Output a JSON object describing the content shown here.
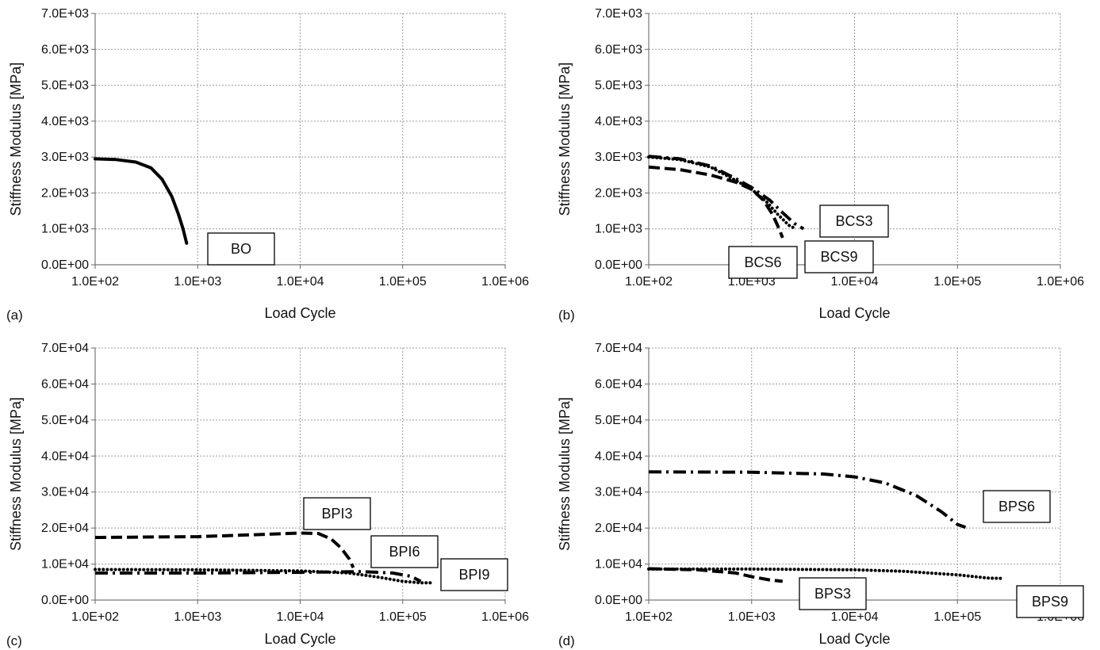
{
  "chart_data": [
    {
      "panel_label": "(a)",
      "type": "line",
      "xlabel": "Load Cycle",
      "ylabel": "Stiffness Modulus [MPa]",
      "x_scale": "log",
      "xlim": [
        100,
        1000000
      ],
      "ylim": [
        0,
        7000
      ],
      "x_tick_labels": [
        "1.0E+02",
        "1.0E+03",
        "1.0E+04",
        "1.0E+05",
        "1.0E+06"
      ],
      "y_tick_labels": [
        "0.0E+00",
        "1.0E+03",
        "2.0E+03",
        "3.0E+03",
        "4.0E+03",
        "5.0E+03",
        "6.0E+03",
        "7.0E+03"
      ],
      "grid": true,
      "series": [
        {
          "name": "BO",
          "style": "solid",
          "points": [
            [
              100,
              2950
            ],
            [
              160,
              2930
            ],
            [
              250,
              2860
            ],
            [
              350,
              2700
            ],
            [
              450,
              2380
            ],
            [
              560,
              1900
            ],
            [
              650,
              1400
            ],
            [
              720,
              1000
            ],
            [
              780,
              600
            ]
          ]
        }
      ],
      "annotations": [
        "BO"
      ]
    },
    {
      "panel_label": "(b)",
      "type": "line",
      "xlabel": "Load Cycle",
      "ylabel": "Stiffness Modulus [MPa]",
      "x_scale": "log",
      "xlim": [
        100,
        1000000
      ],
      "ylim": [
        0,
        7000
      ],
      "x_tick_labels": [
        "1.0E+02",
        "1.0E+03",
        "1.0E+04",
        "1.0E+05",
        "1.0E+06"
      ],
      "y_tick_labels": [
        "0.0E+00",
        "1.0E+03",
        "2.0E+03",
        "3.0E+03",
        "4.0E+03",
        "5.0E+03",
        "6.0E+03",
        "7.0E+03"
      ],
      "grid": true,
      "series": [
        {
          "name": "BCS3",
          "style": "dashdot",
          "points": [
            [
              100,
              3020
            ],
            [
              200,
              2950
            ],
            [
              400,
              2750
            ],
            [
              700,
              2400
            ],
            [
              1000,
              2150
            ],
            [
              1500,
              1800
            ],
            [
              2000,
              1450
            ],
            [
              2600,
              1150
            ],
            [
              3200,
              1000
            ]
          ]
        },
        {
          "name": "BCS6",
          "style": "dashed",
          "points": [
            [
              100,
              2720
            ],
            [
              200,
              2650
            ],
            [
              400,
              2500
            ],
            [
              700,
              2300
            ],
            [
              1000,
              2100
            ],
            [
              1300,
              1800
            ],
            [
              1600,
              1400
            ],
            [
              1850,
              1000
            ],
            [
              2000,
              750
            ]
          ]
        },
        {
          "name": "BCS9",
          "style": "dotted",
          "points": [
            [
              100,
              3000
            ],
            [
              200,
              2930
            ],
            [
              400,
              2720
            ],
            [
              700,
              2350
            ],
            [
              1000,
              2100
            ],
            [
              1400,
              1750
            ],
            [
              1800,
              1400
            ],
            [
              2300,
              1100
            ],
            [
              2700,
              1000
            ]
          ]
        }
      ],
      "annotations": [
        "BCS3",
        "BCS6",
        "BCS9"
      ]
    },
    {
      "panel_label": "(c)",
      "type": "line",
      "xlabel": "Load Cycle",
      "ylabel": "Stiffness Modulus [MPa]",
      "x_scale": "log",
      "xlim": [
        100,
        1000000
      ],
      "ylim": [
        0,
        70000
      ],
      "x_tick_labels": [
        "1.0E+02",
        "1.0E+03",
        "1.0E+04",
        "1.0E+05",
        "1.0E+06"
      ],
      "y_tick_labels": [
        "0.0E+00",
        "1.0E+04",
        "2.0E+04",
        "3.0E+04",
        "4.0E+04",
        "5.0E+04",
        "6.0E+04",
        "7.0E+04"
      ],
      "grid": true,
      "series": [
        {
          "name": "BPI3",
          "style": "dashed",
          "points": [
            [
              100,
              17400
            ],
            [
              1000,
              17600
            ],
            [
              5000,
              18300
            ],
            [
              10000,
              18600
            ],
            [
              15000,
              18500
            ],
            [
              20000,
              17000
            ],
            [
              25000,
              14500
            ],
            [
              30000,
              11500
            ],
            [
              33000,
              9000
            ]
          ]
        },
        {
          "name": "BPI6",
          "style": "dashdot",
          "points": [
            [
              100,
              7500
            ],
            [
              1000,
              7500
            ],
            [
              10000,
              7700
            ],
            [
              40000,
              7900
            ],
            [
              80000,
              7500
            ],
            [
              120000,
              6600
            ],
            [
              150000,
              5200
            ]
          ]
        },
        {
          "name": "BPI9",
          "style": "dotted",
          "points": [
            [
              100,
              8500
            ],
            [
              1000,
              8400
            ],
            [
              10000,
              8100
            ],
            [
              30000,
              7500
            ],
            [
              60000,
              6300
            ],
            [
              100000,
              5200
            ],
            [
              150000,
              4800
            ],
            [
              190000,
              4800
            ]
          ]
        }
      ],
      "annotations": [
        "BPI3",
        "BPI6",
        "BPI9"
      ]
    },
    {
      "panel_label": "(d)",
      "type": "line",
      "xlabel": "Load Cycle",
      "ylabel": "Stiffness Modulus [MPa]",
      "x_scale": "log",
      "xlim": [
        100,
        1000000
      ],
      "ylim": [
        0,
        70000
      ],
      "x_tick_labels": [
        "1.0E+02",
        "1.0E+03",
        "1.0E+04",
        "1.0E+05",
        "1.0E+06"
      ],
      "y_tick_labels": [
        "0.0E+00",
        "1.0E+04",
        "2.0E+04",
        "3.0E+04",
        "4.0E+04",
        "5.0E+04",
        "6.0E+04",
        "7.0E+04"
      ],
      "grid": true,
      "series": [
        {
          "name": "BPS3",
          "style": "dashed",
          "points": [
            [
              100,
              8700
            ],
            [
              300,
              8400
            ],
            [
              700,
              7500
            ],
            [
              1000,
              6500
            ],
            [
              1500,
              5600
            ],
            [
              2000,
              5200
            ]
          ]
        },
        {
          "name": "BPS6",
          "style": "dashdot",
          "points": [
            [
              100,
              35600
            ],
            [
              1000,
              35500
            ],
            [
              5000,
              35000
            ],
            [
              10000,
              34200
            ],
            [
              20000,
              32500
            ],
            [
              40000,
              29000
            ],
            [
              70000,
              24500
            ],
            [
              100000,
              21000
            ],
            [
              120000,
              20200
            ]
          ]
        },
        {
          "name": "BPS9",
          "style": "dotted",
          "points": [
            [
              100,
              8600
            ],
            [
              1000,
              8600
            ],
            [
              10000,
              8400
            ],
            [
              30000,
              8000
            ],
            [
              100000,
              7000
            ],
            [
              200000,
              6100
            ],
            [
              280000,
              6000
            ]
          ]
        }
      ],
      "annotations": [
        "BPS3",
        "BPS6",
        "BPS9"
      ]
    }
  ]
}
